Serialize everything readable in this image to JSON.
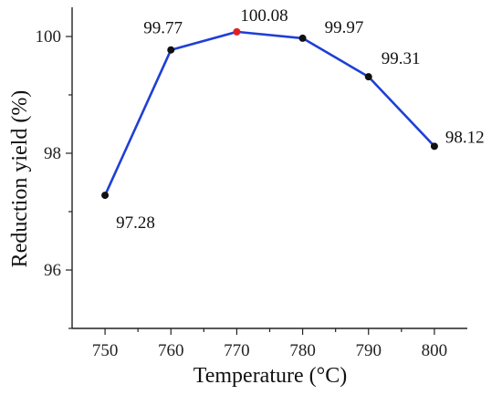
{
  "chart_data": {
    "type": "line",
    "xlabel": "Temperature (°C)",
    "ylabel": "Reduction yield (%)",
    "xlim": [
      745,
      805
    ],
    "ylim": [
      95,
      100.5
    ],
    "xticks": [
      750,
      760,
      770,
      780,
      790,
      800
    ],
    "yticks": [
      96,
      98,
      100
    ],
    "grid": false,
    "series": [
      {
        "x": [
          750,
          760,
          770,
          780,
          790,
          800
        ],
        "y": [
          97.28,
          99.77,
          100.08,
          99.97,
          99.31,
          98.12
        ],
        "labels": [
          "97.28",
          "99.77",
          "100.08",
          "99.97",
          "99.31",
          "98.12"
        ],
        "line_color": "#1f3fd6",
        "marker_color": "#111111",
        "highlight_index": 2,
        "highlight_color": "#e02020"
      }
    ]
  }
}
